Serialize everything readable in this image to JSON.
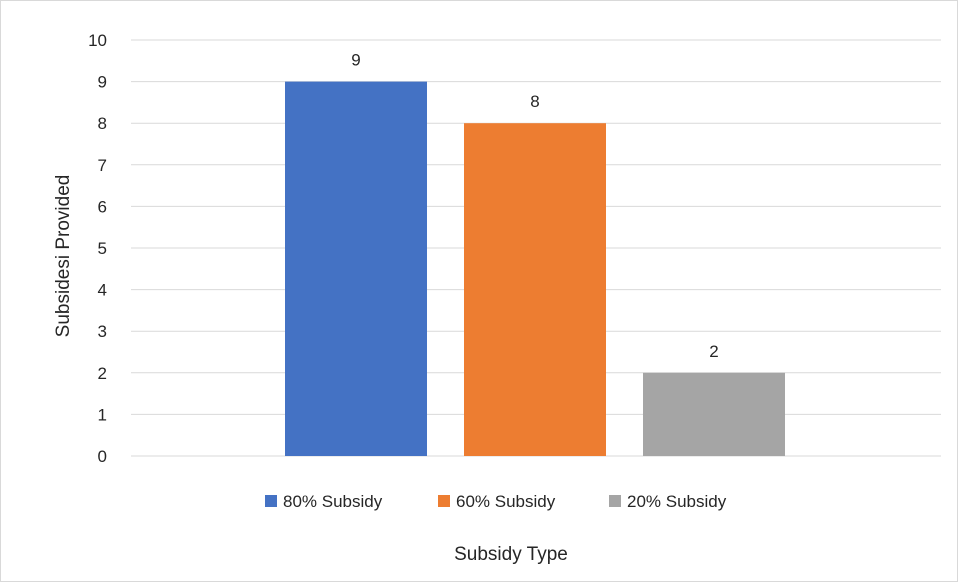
{
  "chart_data": {
    "type": "bar",
    "categories": [
      "80% Subsidy",
      "60% Subsidy",
      "20% Subsidy"
    ],
    "values": [
      9,
      8,
      2
    ],
    "colors": [
      "#4472c4",
      "#ed7d31",
      "#a5a5a5"
    ],
    "data_labels": [
      "9",
      "8",
      "2"
    ],
    "xlabel": "Subsidy Type",
    "ylabel": "Subsidesi Provided",
    "ylim": [
      0,
      10
    ],
    "yticks": [
      "0",
      "1",
      "2",
      "3",
      "4",
      "5",
      "6",
      "7",
      "8",
      "9",
      "10"
    ],
    "grid": true,
    "legend_position": "bottom"
  }
}
